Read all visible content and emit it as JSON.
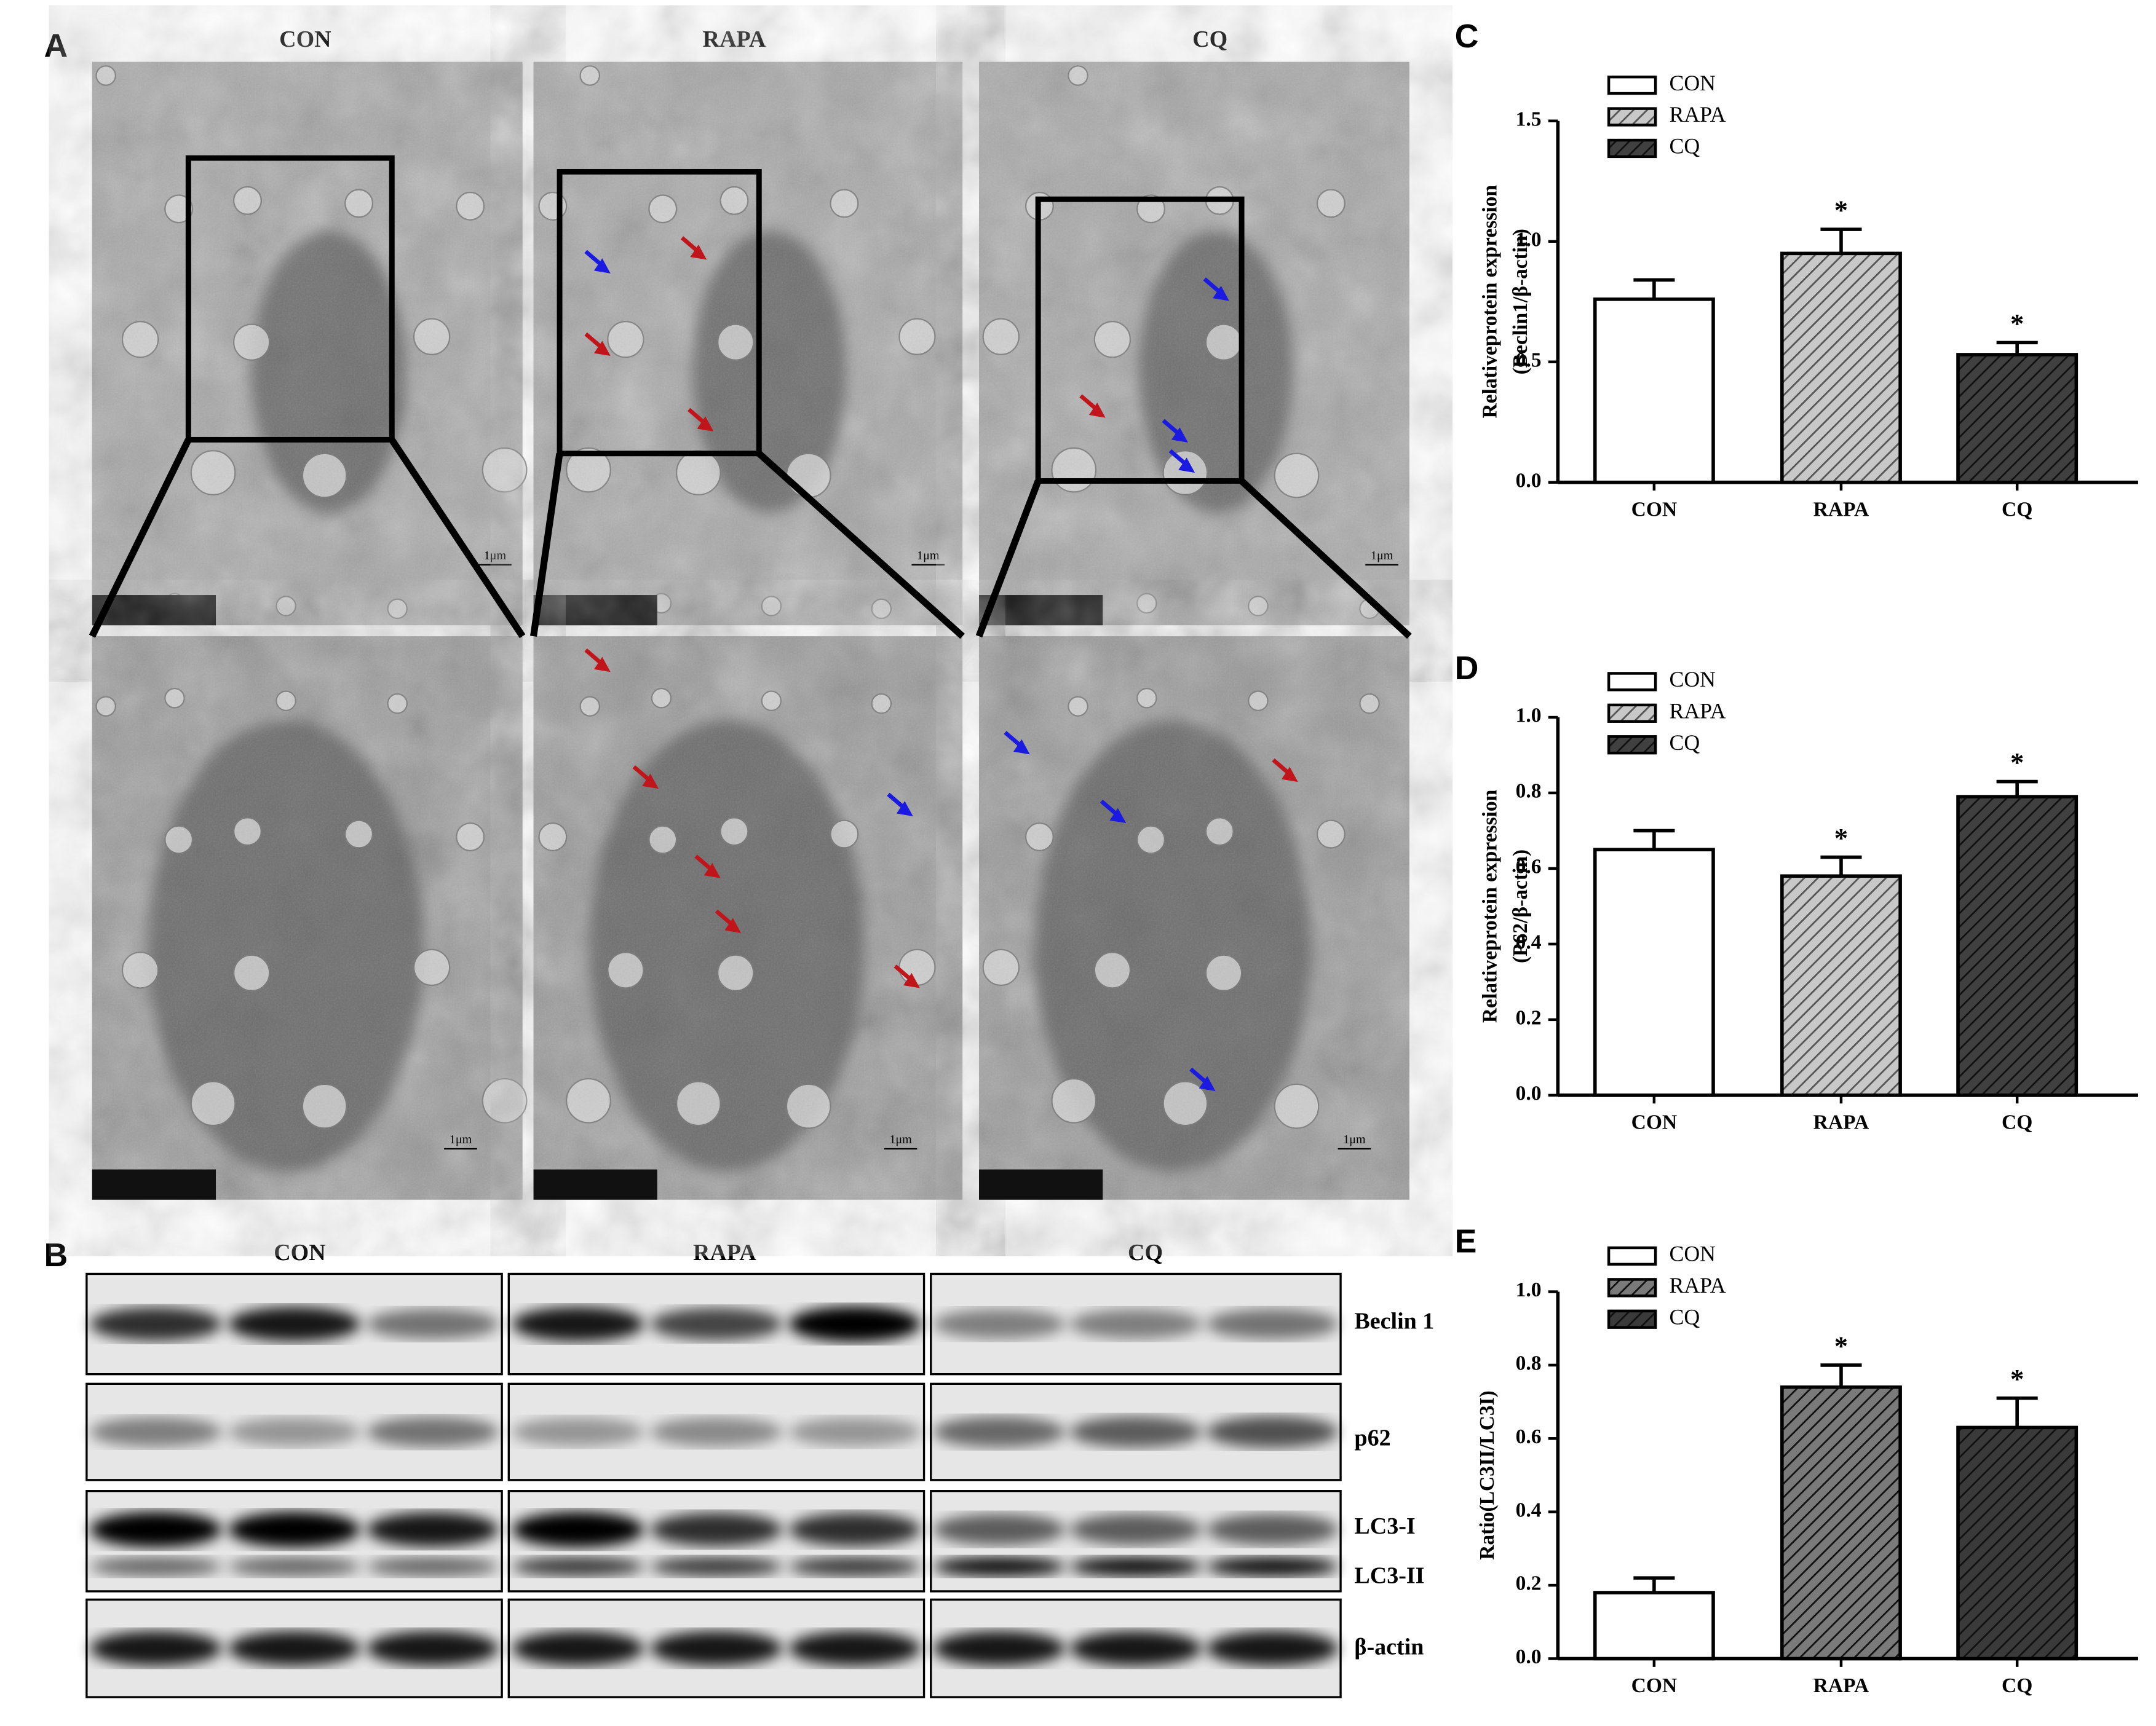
{
  "panel_labels": [
    "A",
    "B",
    "C",
    "D",
    "E"
  ],
  "micrographs": {
    "groups": [
      "CON",
      "RAPA",
      "CQ"
    ],
    "scale_bars": [
      "1μm",
      "1μm",
      "1μm",
      "1μm",
      "1μm",
      "1μm"
    ]
  },
  "blot": {
    "groups": [
      "CON",
      "RAPA",
      "CQ"
    ],
    "rows": [
      "Beclin 1",
      "p62",
      "LC3-I",
      "LC3-II",
      "β-actin"
    ]
  },
  "chart_data": [
    {
      "type": "bar",
      "ylabel": [
        "Relativeprotein expression",
        "(Beclin1/β-actin)"
      ],
      "categories": [
        "CON",
        "RAPA",
        "CQ"
      ],
      "values": [
        0.76,
        0.95,
        0.53
      ],
      "errors": [
        0.08,
        0.1,
        0.05
      ],
      "annotations": [
        null,
        "*",
        "*"
      ],
      "colors": [
        "#ffffff",
        "#c8c8c8",
        "#404040"
      ],
      "hatch": [
        false,
        true,
        true
      ],
      "ylim": [
        0,
        1.5
      ],
      "yticks": [
        {
          "value": 0,
          "label": "0.0"
        },
        0.5,
        {
          "value": 1,
          "label": "1.0"
        },
        1.5
      ]
    },
    {
      "type": "bar",
      "ylabel": [
        "Relativeprotein expression",
        "(P62/β-actin)"
      ],
      "categories": [
        "CON",
        "RAPA",
        "CQ"
      ],
      "values": [
        0.65,
        0.58,
        0.79
      ],
      "errors": [
        0.05,
        0.05,
        0.04
      ],
      "annotations": [
        null,
        "*",
        "*"
      ],
      "colors": [
        "#ffffff",
        "#c8c8c8",
        "#404040"
      ],
      "hatch": [
        false,
        true,
        true
      ],
      "ylim": [
        0,
        1
      ],
      "yticks": [
        {
          "value": 0,
          "label": "0.0"
        },
        0.2,
        0.4,
        0.6,
        0.8,
        {
          "value": 1,
          "label": "1.0"
        }
      ]
    },
    {
      "type": "bar",
      "ylabel": [
        "Ratio(LC3II/LC3I)"
      ],
      "categories": [
        "CON",
        "RAPA",
        "CQ"
      ],
      "values": [
        0.18,
        0.74,
        0.63
      ],
      "errors": [
        0.04,
        0.06,
        0.08
      ],
      "annotations": [
        null,
        "*",
        "*"
      ],
      "colors": [
        "#ffffff",
        "#7a7a7a",
        "#3a3a3a"
      ],
      "hatch": [
        false,
        true,
        true
      ],
      "ylim": [
        0,
        1
      ],
      "yticks": [
        {
          "value": 0,
          "label": "0.0"
        },
        0.2,
        0.4,
        0.6,
        0.8,
        {
          "value": 1,
          "label": "1.0"
        }
      ]
    }
  ]
}
